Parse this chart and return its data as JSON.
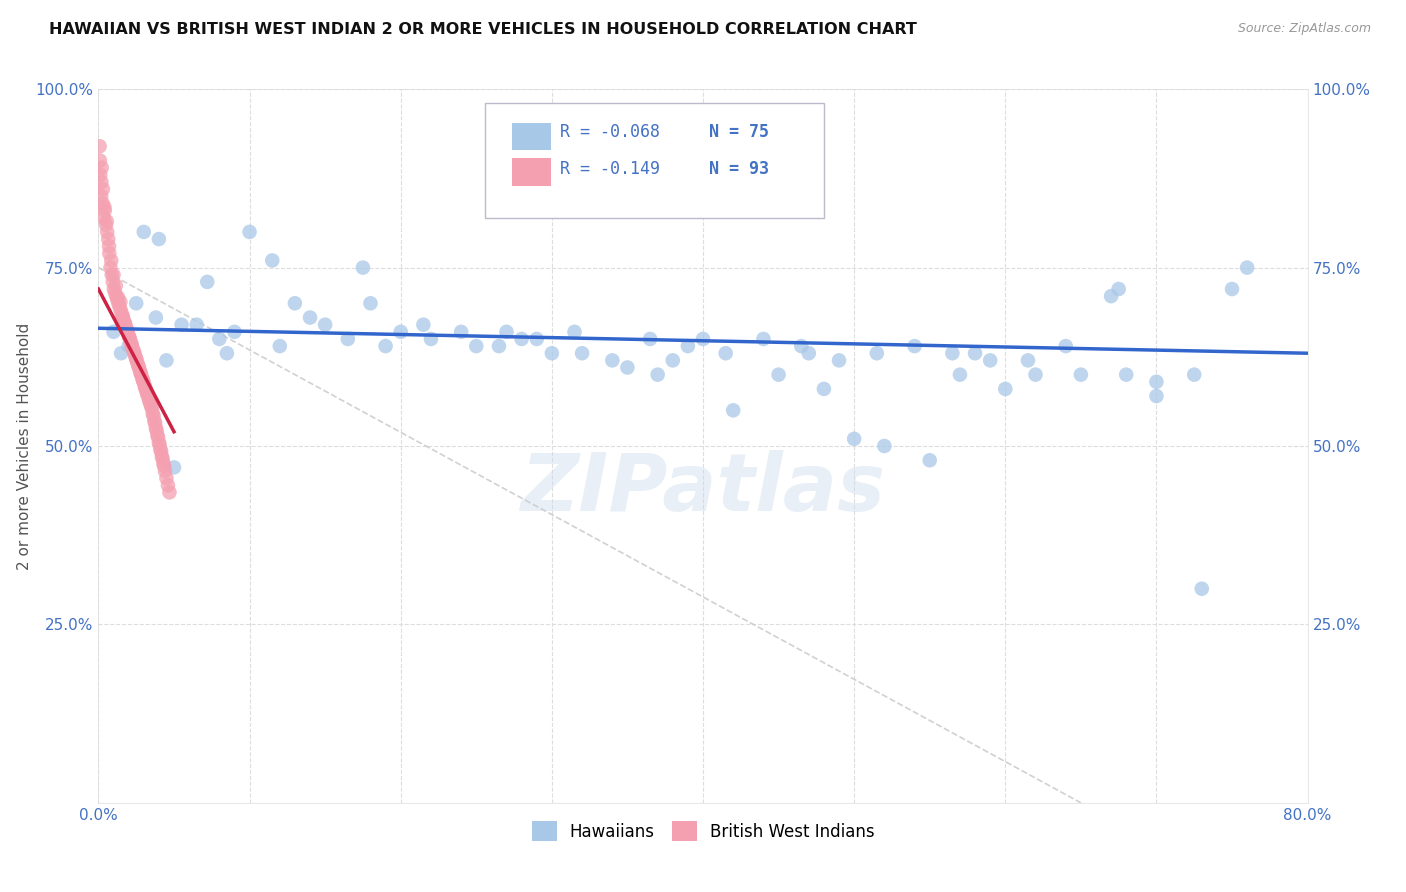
{
  "title": "HAWAIIAN VS BRITISH WEST INDIAN 2 OR MORE VEHICLES IN HOUSEHOLD CORRELATION CHART",
  "source": "Source: ZipAtlas.com",
  "ylabel": "2 or more Vehicles in Household",
  "xlim": [
    0.0,
    80.0
  ],
  "ylim": [
    0.0,
    100.0
  ],
  "hawaiians_R": -0.068,
  "hawaiians_N": 75,
  "bwi_R": -0.149,
  "bwi_N": 93,
  "blue_color": "#a8c8e8",
  "pink_color": "#f4a0b0",
  "blue_line_color": "#3366cc",
  "pink_line_color": "#cc2244",
  "gray_diag_color": "#cccccc",
  "axis_color": "#4472c4",
  "background_color": "#ffffff",
  "grid_color": "#dddddd",
  "title_color": "#111111",
  "source_color": "#999999",
  "hawaiians_x": [
    1.0,
    1.5,
    2.5,
    3.8,
    5.5,
    7.2,
    9.0,
    11.5,
    14.0,
    16.5,
    19.0,
    21.5,
    24.0,
    26.5,
    29.0,
    31.5,
    34.0,
    36.5,
    39.0,
    41.5,
    44.0,
    46.5,
    49.0,
    51.5,
    54.0,
    56.5,
    59.0,
    61.5,
    64.0,
    67.0,
    70.0,
    73.0,
    76.0,
    2.0,
    4.5,
    6.5,
    8.5,
    13.0,
    17.5,
    22.0,
    27.0,
    32.0,
    37.0,
    42.0,
    47.0,
    52.0,
    57.0,
    62.0,
    67.5,
    72.5,
    3.0,
    10.0,
    18.0,
    28.0,
    38.0,
    48.0,
    58.0,
    68.0,
    15.0,
    25.0,
    35.0,
    45.0,
    55.0,
    65.0,
    75.0,
    5.0,
    12.0,
    20.0,
    30.0,
    40.0,
    50.0,
    60.0,
    70.0,
    4.0,
    8.0
  ],
  "hawaiians_y": [
    66.0,
    63.0,
    70.0,
    68.0,
    67.0,
    73.0,
    66.0,
    76.0,
    68.0,
    65.0,
    64.0,
    67.0,
    66.0,
    64.0,
    65.0,
    66.0,
    62.0,
    65.0,
    64.0,
    63.0,
    65.0,
    64.0,
    62.0,
    63.0,
    64.0,
    63.0,
    62.0,
    62.0,
    64.0,
    71.0,
    59.0,
    30.0,
    75.0,
    64.0,
    62.0,
    67.0,
    63.0,
    70.0,
    75.0,
    65.0,
    66.0,
    63.0,
    60.0,
    55.0,
    63.0,
    50.0,
    60.0,
    60.0,
    72.0,
    60.0,
    80.0,
    80.0,
    70.0,
    65.0,
    62.0,
    58.0,
    63.0,
    60.0,
    67.0,
    64.0,
    61.0,
    60.0,
    48.0,
    60.0,
    72.0,
    47.0,
    64.0,
    66.0,
    63.0,
    65.0,
    51.0,
    58.0,
    57.0,
    79.0,
    65.0
  ],
  "bwi_x": [
    0.08,
    0.12,
    0.18,
    0.22,
    0.28,
    0.35,
    0.42,
    0.5,
    0.58,
    0.65,
    0.72,
    0.8,
    0.88,
    0.95,
    1.02,
    1.1,
    1.18,
    1.25,
    1.32,
    1.4,
    1.48,
    1.55,
    1.62,
    1.7,
    1.78,
    1.85,
    1.92,
    2.0,
    2.08,
    2.15,
    2.22,
    2.3,
    2.38,
    2.45,
    2.52,
    2.6,
    2.68,
    2.75,
    2.82,
    2.9,
    2.98,
    3.05,
    3.12,
    3.2,
    3.28,
    3.35,
    3.42,
    3.5,
    3.6,
    3.7,
    3.8,
    3.9,
    4.0,
    4.1,
    4.2,
    4.3,
    4.4,
    4.5,
    4.6,
    4.7,
    0.1,
    0.2,
    0.3,
    0.4,
    0.55,
    0.7,
    0.85,
    1.0,
    1.15,
    1.3,
    1.45,
    1.6,
    1.75,
    1.9,
    2.05,
    2.2,
    2.35,
    2.5,
    2.65,
    2.8,
    2.95,
    3.1,
    3.25,
    3.4,
    3.55,
    3.65,
    3.75,
    3.85,
    3.95,
    4.05,
    4.15,
    4.25,
    4.35
  ],
  "bwi_y": [
    92.0,
    88.0,
    85.0,
    89.0,
    84.0,
    82.0,
    83.0,
    81.0,
    80.0,
    79.0,
    77.0,
    75.0,
    74.0,
    73.0,
    72.0,
    71.5,
    71.0,
    70.5,
    70.0,
    69.5,
    69.0,
    68.5,
    68.0,
    67.5,
    67.0,
    66.5,
    66.0,
    65.5,
    65.0,
    64.5,
    64.0,
    63.5,
    63.0,
    62.5,
    62.0,
    61.5,
    61.0,
    60.5,
    60.0,
    59.5,
    59.0,
    58.5,
    58.0,
    57.5,
    57.0,
    56.5,
    56.0,
    55.5,
    54.5,
    53.5,
    52.5,
    51.5,
    50.5,
    49.5,
    48.5,
    47.5,
    46.5,
    45.5,
    44.5,
    43.5,
    90.0,
    87.0,
    86.0,
    83.5,
    81.5,
    78.0,
    76.0,
    74.0,
    72.5,
    70.8,
    70.2,
    68.2,
    67.2,
    66.2,
    65.2,
    64.2,
    63.2,
    62.2,
    61.2,
    60.2,
    59.2,
    58.2,
    57.2,
    56.2,
    55.2,
    54.2,
    53.2,
    52.2,
    51.2,
    50.2,
    49.2,
    48.2,
    47.2
  ],
  "blue_trend_x0": 0.0,
  "blue_trend_y0": 66.5,
  "blue_trend_x1": 80.0,
  "blue_trend_y1": 63.0,
  "pink_trend_x0": 0.0,
  "pink_trend_y0": 72.0,
  "pink_trend_x1": 5.0,
  "pink_trend_y1": 52.0,
  "diag_x0": 0.0,
  "diag_y0": 75.0,
  "diag_x1": 65.0,
  "diag_y1": 0.0
}
